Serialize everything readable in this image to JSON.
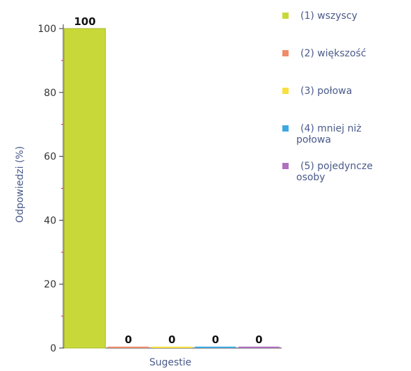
{
  "chart_data": {
    "type": "bar",
    "title": "",
    "xlabel": "Sugestie",
    "ylabel": "Odpowiedzi (%)",
    "ylim": [
      0,
      100
    ],
    "yticks": [
      0,
      20,
      40,
      60,
      80,
      100
    ],
    "categories": [
      "(1) wszyscy",
      "(2) większość",
      "(3) połowa",
      "(4) mniej niż połowa",
      "(5) pojedyncze osoby"
    ],
    "values": [
      100,
      0,
      0,
      0,
      0
    ],
    "value_labels": [
      "100",
      "0",
      "0",
      "0",
      "0"
    ],
    "colors": [
      "#c8d838",
      "#f08c6c",
      "#f8e040",
      "#40a8e0",
      "#b070c0"
    ],
    "legend": {
      "placement": "right",
      "entries": [
        {
          "lines": [
            "(1) wszyscy"
          ],
          "color": "#c8d838"
        },
        {
          "lines": [
            "(2) większość"
          ],
          "color": "#f08c6c"
        },
        {
          "lines": [
            "(3) połowa"
          ],
          "color": "#f8e040"
        },
        {
          "lines": [
            "(4) mniej niż",
            "połowa"
          ],
          "color": "#40a8e0"
        },
        {
          "lines": [
            "(5) pojedyncze",
            "osoby"
          ],
          "color": "#b070c0"
        }
      ]
    },
    "grid": false
  },
  "colors": {
    "axis": "#333333",
    "minor_tick": "#cc3333",
    "text_accent": "#4a5a8a"
  }
}
